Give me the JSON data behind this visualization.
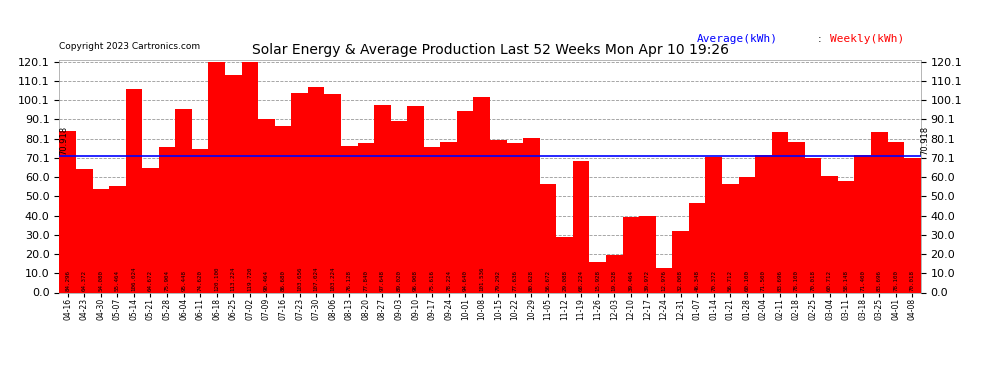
{
  "title": "Solar Energy & Average Production Last 52 Weeks Mon Apr 10 19:26",
  "copyright": "Copyright 2023 Cartronics.com",
  "legend_avg": "Average(kWh)",
  "legend_weekly": "Weekly(kWh)",
  "average_line": 70.918,
  "ylim": [
    0.0,
    121.0
  ],
  "yticks": [
    0.0,
    10.0,
    20.0,
    30.0,
    40.0,
    50.0,
    60.0,
    70.1,
    80.1,
    90.1,
    100.1,
    110.1,
    120.1
  ],
  "ytick_labels": [
    "0.0",
    "10.0",
    "20.0",
    "30.0",
    "40.0",
    "50.0",
    "60.0",
    "70.1",
    "80.1",
    "90.1",
    "100.1",
    "110.1",
    "120.1"
  ],
  "bar_color": "#ff0000",
  "avg_line_color": "#0000ff",
  "background_color": "#ffffff",
  "grid_color": "#999999",
  "categories": [
    "04-16",
    "04-23",
    "04-30",
    "05-07",
    "05-14",
    "05-21",
    "05-28",
    "06-04",
    "06-11",
    "06-18",
    "06-25",
    "07-02",
    "07-09",
    "07-16",
    "07-23",
    "07-30",
    "08-06",
    "08-13",
    "08-20",
    "08-27",
    "09-03",
    "09-10",
    "09-17",
    "09-24",
    "10-01",
    "10-08",
    "10-15",
    "10-22",
    "10-29",
    "11-05",
    "11-12",
    "11-19",
    "11-26",
    "12-03",
    "12-10",
    "12-17",
    "12-24",
    "12-31",
    "01-07",
    "01-14",
    "01-21",
    "01-28",
    "02-04",
    "02-11",
    "02-18",
    "02-25",
    "03-04",
    "03-11",
    "03-18",
    "03-25",
    "04-01",
    "04-08"
  ],
  "values": [
    84.296,
    64.372,
    54.08,
    55.464,
    106.024,
    64.672,
    75.904,
    95.448,
    74.62,
    120.1,
    113.224,
    119.72,
    90.464,
    86.68,
    103.656,
    107.024,
    103.224,
    76.128,
    77.84,
    97.648,
    89.02,
    96.908,
    75.616,
    78.224,
    94.64,
    101.536,
    79.292,
    77.636,
    80.628,
    56.672,
    29.088,
    68.224,
    15.928,
    19.528,
    39.464,
    39.972,
    12.976,
    32.008,
    46.348,
    70.372,
    56.712,
    60.1,
    71.5,
    83.696,
    78.1,
    70.018,
    60.712,
    58.148,
    71.4,
    83.696,
    78.1,
    70.018
  ],
  "value_labels": [
    "84.296",
    "64.372",
    "54.080",
    "55.464",
    "106.024",
    "64.672",
    "75.904",
    "95.448",
    "74.620",
    "120.100",
    "113.224",
    "119.720",
    "90.464",
    "86.680",
    "103.656",
    "107.024",
    "103.224",
    "76.128",
    "77.840",
    "97.648",
    "89.020",
    "96.908",
    "75.616",
    "78.224",
    "94.640",
    "101.536",
    "79.292",
    "77.636",
    "80.628",
    "56.672",
    "29.088",
    "68.224",
    "15.928",
    "19.528",
    "39.464",
    "39.972",
    "12.976",
    "32.008",
    "46.348",
    "70.372",
    "56.712",
    "60.100",
    "71.500",
    "83.696",
    "78.100",
    "70.018",
    "60.712",
    "58.148",
    "71.400",
    "83.696",
    "78.100",
    "70.018"
  ],
  "avg_label": "70.918"
}
